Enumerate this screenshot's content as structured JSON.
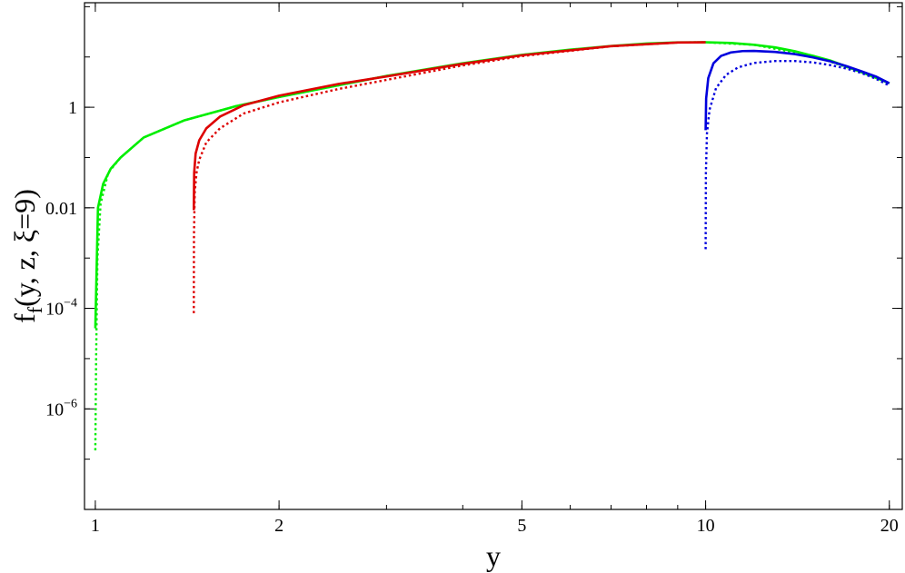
{
  "chart_data": {
    "type": "line",
    "title": "",
    "xlabel": "y",
    "ylabel": "f_f(y, z, ξ=9)",
    "ylabel_parts": {
      "base": "f",
      "sub": "f",
      "args": "(y, z, ξ=9)"
    },
    "x_scale": "log",
    "y_scale": "log",
    "xlim": [
      0.96,
      21
    ],
    "ylim": [
      1e-08,
      120
    ],
    "x_ticks": [
      {
        "value": 1,
        "label": "1"
      },
      {
        "value": 2,
        "label": "2"
      },
      {
        "value": 5,
        "label": "5"
      },
      {
        "value": 10,
        "label": "10"
      },
      {
        "value": 20,
        "label": "20"
      }
    ],
    "y_ticks": [
      {
        "value": 1,
        "label": "1",
        "exp": ""
      },
      {
        "value": 0.01,
        "label": "0.01",
        "exp": ""
      },
      {
        "value": 0.0001,
        "label": "10",
        "exp": "−4"
      },
      {
        "value": 1e-06,
        "label": "10",
        "exp": "−6"
      }
    ],
    "grid": false,
    "series": [
      {
        "color": "#00ee00",
        "dash": false,
        "x": [
          1.0,
          1.01,
          1.03,
          1.06,
          1.1,
          1.2,
          1.4,
          1.7,
          2,
          3,
          4,
          5,
          6,
          7,
          8,
          9,
          10,
          11,
          12,
          13,
          14,
          15,
          16,
          17,
          18,
          19,
          20
        ],
        "y": [
          4e-05,
          0.01,
          0.03,
          0.06,
          0.1,
          0.25,
          0.55,
          1.05,
          1.6,
          4.2,
          7.5,
          11,
          14,
          16.5,
          18.5,
          19.5,
          19.6,
          19,
          17.5,
          15.5,
          13,
          10.5,
          8.5,
          6.5,
          5,
          3.9,
          3.0
        ]
      },
      {
        "color": "#00ee00",
        "dash": true,
        "x": [
          1.0,
          1.003,
          1.008,
          1.02,
          1.05,
          1.1,
          1.2,
          1.4,
          1.7,
          2,
          3,
          5,
          7,
          9,
          10,
          12,
          15,
          18,
          20
        ],
        "y": [
          1.5e-07,
          1e-05,
          0.001,
          0.012,
          0.05,
          0.1,
          0.25,
          0.55,
          1.05,
          1.6,
          4.2,
          11,
          16.5,
          19.5,
          19.6,
          17.5,
          10.5,
          5,
          3.0
        ]
      },
      {
        "color": "#dd0000",
        "dash": false,
        "x": [
          1.45,
          1.452,
          1.46,
          1.48,
          1.52,
          1.6,
          1.75,
          2,
          2.5,
          3,
          4,
          5,
          7,
          9,
          10
        ],
        "y": [
          0.009,
          0.05,
          0.12,
          0.22,
          0.38,
          0.65,
          1.1,
          1.7,
          2.9,
          4.1,
          7.3,
          10.8,
          16.4,
          19.4,
          19.6
        ]
      },
      {
        "color": "#dd0000",
        "dash": true,
        "x": [
          1.45,
          1.451,
          1.455,
          1.465,
          1.48,
          1.52,
          1.6,
          1.75,
          2,
          2.5,
          3,
          4,
          5,
          7,
          9,
          10
        ],
        "y": [
          8e-05,
          0.003,
          0.02,
          0.05,
          0.09,
          0.2,
          0.38,
          0.75,
          1.25,
          2.3,
          3.5,
          6.8,
          10.4,
          16.3,
          19.4,
          19.6
        ]
      },
      {
        "color": "#0000dd",
        "dash": false,
        "x": [
          10.0,
          10.02,
          10.1,
          10.3,
          10.6,
          11,
          11.5,
          12,
          13,
          14,
          15,
          16,
          17,
          18,
          19,
          20
        ],
        "y": [
          0.35,
          1.5,
          3.8,
          7.5,
          10.5,
          12.3,
          13.1,
          13.2,
          12.6,
          11.4,
          9.8,
          8.2,
          6.6,
          5.2,
          4.1,
          3.0
        ]
      },
      {
        "color": "#0000dd",
        "dash": true,
        "x": [
          10.0,
          10.01,
          10.05,
          10.15,
          10.4,
          10.8,
          11.3,
          12,
          13,
          14,
          15,
          16,
          17,
          18,
          19,
          20
        ],
        "y": [
          0.0015,
          0.05,
          0.3,
          0.9,
          2.4,
          4.4,
          6.2,
          7.6,
          8.3,
          8.3,
          7.8,
          6.9,
          5.9,
          4.8,
          3.7,
          2.7
        ]
      }
    ]
  }
}
